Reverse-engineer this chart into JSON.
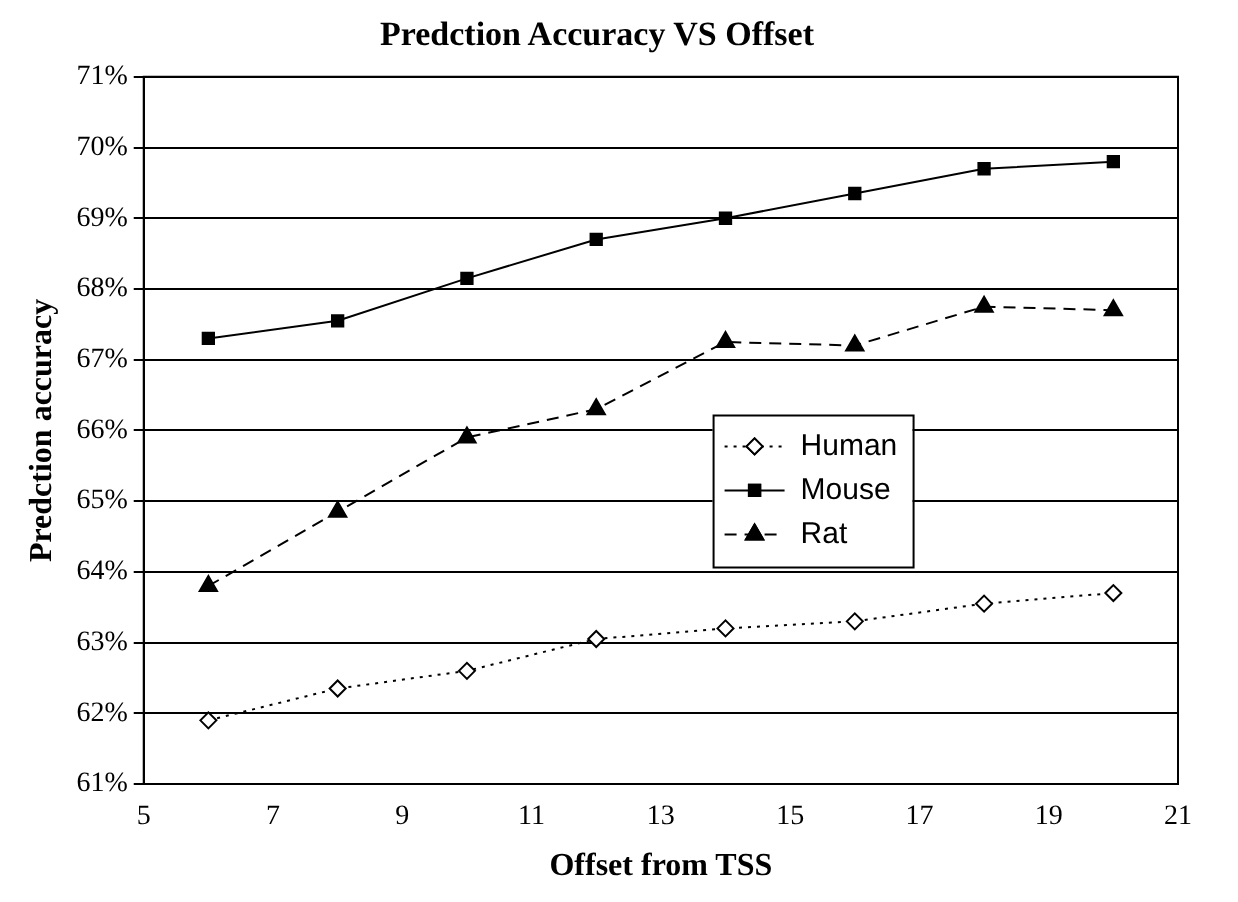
{
  "chart_data": {
    "type": "line",
    "title": "Predction Accuracy VS Offset",
    "xlabel": "Offset from TSS",
    "ylabel": "Predction accuracy",
    "x": [
      6,
      8,
      10,
      12,
      14,
      16,
      18,
      20
    ],
    "series": [
      {
        "name": "Human",
        "color": "#000000",
        "marker": "diamond",
        "line_style": "dotted",
        "values": [
          61.9,
          62.35,
          62.6,
          63.05,
          63.2,
          63.3,
          63.55,
          63.7
        ]
      },
      {
        "name": "Mouse",
        "color": "#000000",
        "marker": "square",
        "line_style": "solid",
        "values": [
          67.3,
          67.55,
          68.15,
          68.7,
          69.0,
          69.35,
          69.7,
          69.8
        ]
      },
      {
        "name": "Rat",
        "color": "#000000",
        "marker": "triangle",
        "line_style": "dashed",
        "values": [
          63.8,
          64.85,
          65.9,
          66.3,
          67.25,
          67.2,
          67.75,
          67.7
        ]
      }
    ],
    "xlim": [
      5,
      21
    ],
    "xticks": [
      5,
      7,
      9,
      11,
      13,
      15,
      17,
      19,
      21
    ],
    "ylim": [
      61,
      71
    ],
    "yticks": [
      {
        "value": 61,
        "label": "61%"
      },
      {
        "value": 62,
        "label": "62%"
      },
      {
        "value": 63,
        "label": "63%"
      },
      {
        "value": 64,
        "label": "64%"
      },
      {
        "value": 65,
        "label": "65%"
      },
      {
        "value": 66,
        "label": "66%"
      },
      {
        "value": 67,
        "label": "67%"
      },
      {
        "value": 68,
        "label": "68%"
      },
      {
        "value": 69,
        "label": "69%"
      },
      {
        "value": 70,
        "label": "70%"
      },
      {
        "value": 71,
        "label": "71%"
      }
    ],
    "grid": "y",
    "legend": "right"
  }
}
